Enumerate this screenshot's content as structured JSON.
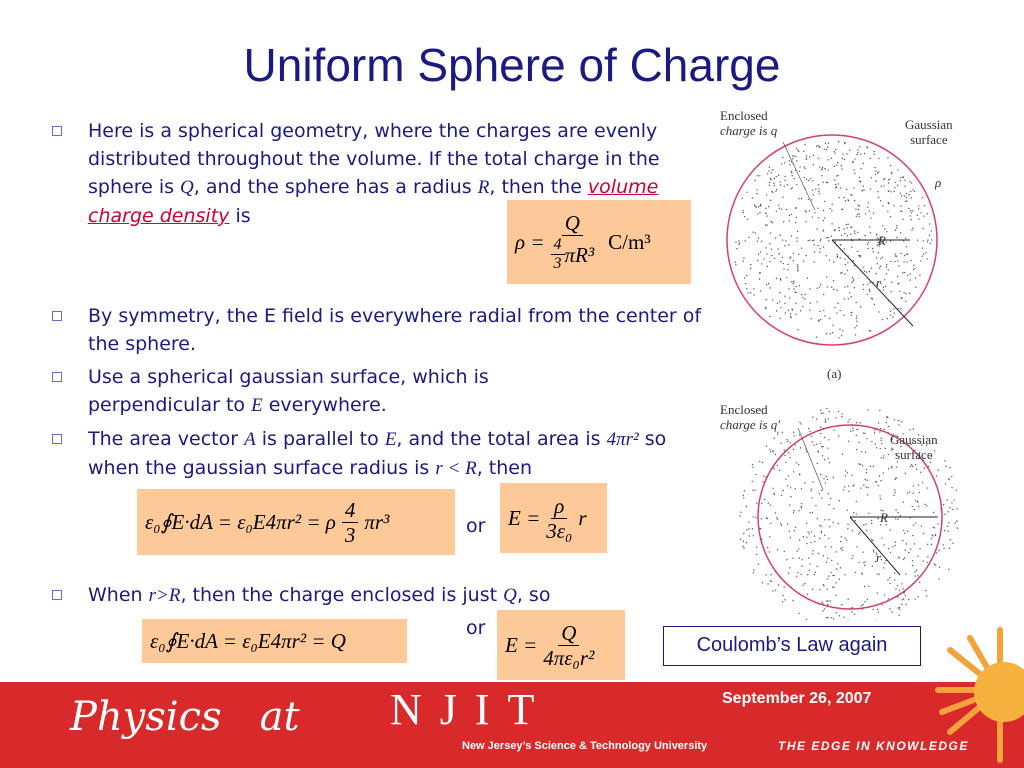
{
  "title": "Uniform Sphere of Charge",
  "bullets": [
    [
      "Here is a spherical geometry, where the charges are evenly distributed throughout the volume. If the total charge in the sphere is ",
      "Q",
      ", and the sphere has a radius ",
      "R",
      ", then the ",
      "volume charge density",
      " is"
    ],
    [
      "By symmetry, the E field is everywhere radial from the center of the sphere."
    ],
    [
      "Use a spherical gaussian surface, which is perpendicular to ",
      "E",
      " everywhere."
    ],
    [
      "The area vector ",
      "A",
      " is parallel to ",
      "E",
      ", and the total area is ",
      "4πr²",
      " so when the gaussian surface radius is ",
      "r < R",
      ", then"
    ],
    [
      "When ",
      "r>R",
      ", then the charge enclosed is just ",
      "Q",
      ", so"
    ]
  ],
  "eq_density": {
    "lhs": "ρ =",
    "num": "Q",
    "den_num": "4",
    "den_den": "3",
    "den_rest": "πR³",
    "unit": "C/m³"
  },
  "eq_inside": {
    "left": "ε₀∮E·dA = ε₀E4πr² = ρ",
    "num": "4",
    "den": "3",
    "right": "πr³"
  },
  "or_1": "or",
  "eq_inside_result": {
    "lhs": "E =",
    "num": "ρ",
    "den": "3ε₀",
    "right": "r"
  },
  "eq_outside": "ε₀∮E·dA = ε₀E4πr² = Q",
  "or_2": "or",
  "eq_outside_result": {
    "lhs": "E =",
    "num": "Q",
    "den": "4πε₀r²"
  },
  "callout": "Coulomb’s Law again",
  "figure_a": {
    "enclosed": [
      "Enclosed",
      "charge is q"
    ],
    "gaussian": [
      "Gaussian",
      "surface"
    ],
    "rho": "ρ",
    "R": "R",
    "r": "r",
    "caption": "(a)"
  },
  "figure_b": {
    "enclosed": [
      "Enclosed",
      "charge is q′"
    ],
    "gaussian": [
      "Gaussian",
      "surface"
    ],
    "R": "R",
    "r": "r"
  },
  "footer": {
    "date": "September 26, 2007",
    "brand": "Physics   at",
    "logo": "NJIT",
    "university": "New Jersey’s Science & Technology University",
    "tagline": "THE EDGE IN KNOWLEDGE"
  }
}
